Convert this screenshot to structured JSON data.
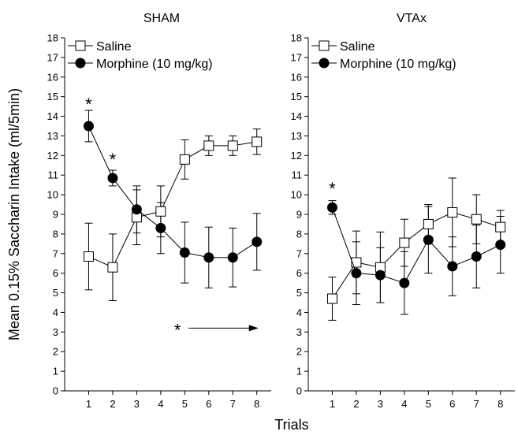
{
  "chart_data": [
    {
      "type": "line",
      "title": "SHAM",
      "xlabel": "Trials",
      "ylabel": "Mean 0.15% Saccharin Intake (ml/5min)",
      "x": [
        1,
        2,
        3,
        4,
        5,
        6,
        7,
        8
      ],
      "xlim": [
        0,
        8.6
      ],
      "ylim": [
        0,
        18
      ],
      "x_ticks": [
        "1",
        "2",
        "3",
        "4",
        "5",
        "6",
        "7",
        "8"
      ],
      "y_ticks": [
        "0",
        "1",
        "2",
        "3",
        "4",
        "5",
        "6",
        "7",
        "8",
        "9",
        "10",
        "11",
        "12",
        "13",
        "14",
        "15",
        "16",
        "17",
        "18"
      ],
      "legend_position": "top-left",
      "grid": false,
      "series": [
        {
          "name": "Saline",
          "marker": "open-square",
          "values": [
            6.85,
            6.3,
            8.85,
            9.15,
            11.8,
            12.5,
            12.5,
            12.7
          ],
          "error": [
            1.7,
            1.7,
            1.4,
            1.3,
            1.0,
            0.5,
            0.5,
            0.65
          ]
        },
        {
          "name": "Morphine (10 mg/kg)",
          "marker": "filled-circle",
          "values": [
            13.5,
            10.85,
            9.25,
            8.3,
            7.05,
            6.8,
            6.8,
            7.6
          ],
          "error": [
            0.8,
            0.4,
            1.2,
            1.3,
            1.55,
            1.55,
            1.5,
            1.45
          ]
        }
      ],
      "annotations": [
        {
          "text": "*",
          "x": 1,
          "y": 14.7
        },
        {
          "text": "*",
          "x": 2,
          "y": 11.9
        },
        {
          "text": "*",
          "x": 4.7,
          "y": 3.2,
          "arrow_to_x": 8
        }
      ]
    },
    {
      "type": "line",
      "title": "VTAx",
      "xlabel": "Trials",
      "ylabel": "",
      "x": [
        1,
        2,
        3,
        4,
        5,
        6,
        7,
        8
      ],
      "xlim": [
        0,
        8.6
      ],
      "ylim": [
        0,
        18
      ],
      "x_ticks": [
        "1",
        "2",
        "3",
        "4",
        "5",
        "6",
        "7",
        "8"
      ],
      "y_ticks": [
        "0",
        "1",
        "2",
        "3",
        "4",
        "5",
        "6",
        "7",
        "8",
        "9",
        "10",
        "11",
        "12",
        "13",
        "14",
        "15",
        "16",
        "17",
        "18"
      ],
      "legend_position": "top-left",
      "grid": false,
      "series": [
        {
          "name": "Saline",
          "marker": "open-square",
          "values": [
            4.7,
            6.55,
            6.3,
            7.55,
            8.5,
            9.1,
            8.75,
            8.35
          ],
          "error": [
            1.1,
            1.6,
            1.8,
            1.2,
            1.0,
            1.75,
            1.25,
            0.85
          ]
        },
        {
          "name": "Morphine (10 mg/kg)",
          "marker": "filled-circle",
          "values": [
            9.35,
            6.0,
            5.9,
            5.5,
            7.7,
            6.35,
            6.85,
            7.45
          ],
          "error": [
            0.35,
            1.6,
            1.4,
            1.6,
            1.7,
            1.5,
            1.6,
            1.45
          ]
        }
      ],
      "annotations": [
        {
          "text": "*",
          "x": 1,
          "y": 10.4
        }
      ]
    }
  ]
}
